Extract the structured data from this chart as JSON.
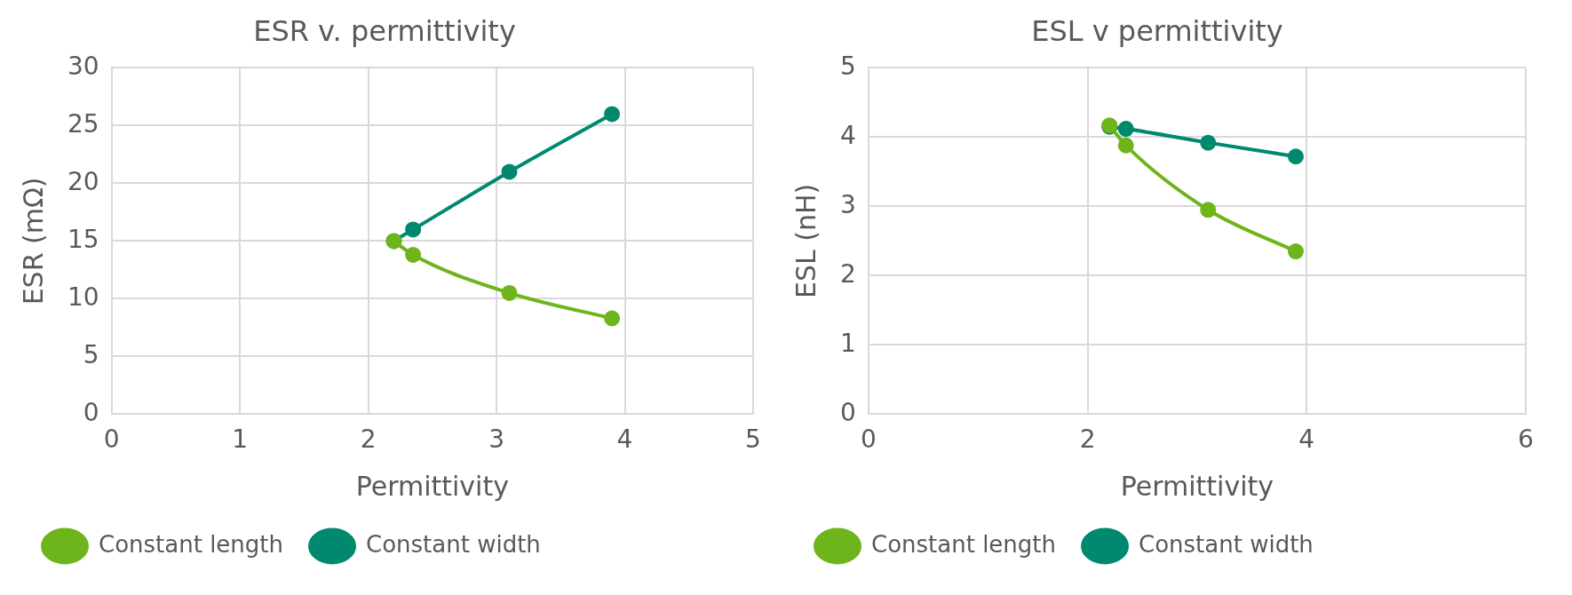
{
  "chart_data": [
    {
      "type": "line",
      "title": "ESR v. permittivity",
      "xlabel": "Permittivity",
      "ylabel": "ESR (mΩ)",
      "xlim": [
        0,
        5
      ],
      "xticks": [
        0,
        1,
        2,
        3,
        4,
        5
      ],
      "ylim": [
        0,
        30
      ],
      "yticks": [
        0,
        5,
        10,
        15,
        20,
        25,
        30
      ],
      "grid": true,
      "legend": "bottom",
      "marker": "circle",
      "line_style": "solid",
      "series": [
        {
          "name": "Constant width",
          "color": "#00896f",
          "x": [
            2.2,
            2.35,
            3.1,
            3.9
          ],
          "values": [
            15,
            16,
            21,
            26
          ]
        },
        {
          "name": "Constant length",
          "color": "#6eb41b",
          "x": [
            2.2,
            2.35,
            3.1,
            3.9
          ],
          "values": [
            15,
            13.8,
            10.5,
            8.3
          ]
        }
      ]
    },
    {
      "type": "line",
      "title": "ESL v permittivity",
      "xlabel": "Permittivity",
      "ylabel": "ESL (nH)",
      "xlim": [
        0,
        6
      ],
      "xticks": [
        0,
        2,
        4,
        6
      ],
      "ylim": [
        0,
        5
      ],
      "yticks": [
        0,
        1,
        2,
        3,
        4,
        5
      ],
      "grid": true,
      "legend": "bottom",
      "marker": "circle",
      "line_style": "solid",
      "series": [
        {
          "name": "Constant width",
          "color": "#00896f",
          "x": [
            2.2,
            2.35,
            3.1,
            3.9
          ],
          "values": [
            4.15,
            4.12,
            3.92,
            3.72
          ]
        },
        {
          "name": "Constant length",
          "color": "#6eb41b",
          "x": [
            2.2,
            2.35,
            3.1,
            3.9
          ],
          "values": [
            4.17,
            3.88,
            2.95,
            2.35
          ]
        }
      ]
    }
  ]
}
